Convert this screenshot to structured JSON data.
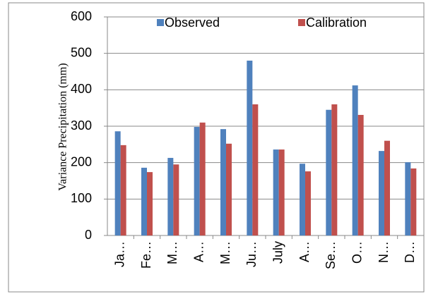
{
  "chart_data": {
    "type": "bar",
    "y_label": "Variance Precipitation (mm)",
    "categories": [
      "Ja…",
      "Fe…",
      "M…",
      "A…",
      "M…",
      "Ju…",
      "July",
      "A…",
      "Se…",
      "O…",
      "N…",
      "D…"
    ],
    "series": [
      {
        "name": "Observed",
        "color": "#4f81bd",
        "values": [
          286,
          186,
          213,
          298,
          292,
          480,
          236,
          197,
          345,
          412,
          232,
          201
        ]
      },
      {
        "name": "Calibration",
        "color": "#c0504d",
        "values": [
          248,
          174,
          195,
          310,
          252,
          360,
          236,
          176,
          360,
          331,
          260,
          184
        ]
      }
    ],
    "ylim": [
      0,
      600
    ],
    "yticks": [
      0,
      100,
      200,
      300,
      400,
      500,
      600
    ],
    "grid": true,
    "legend": "top"
  }
}
